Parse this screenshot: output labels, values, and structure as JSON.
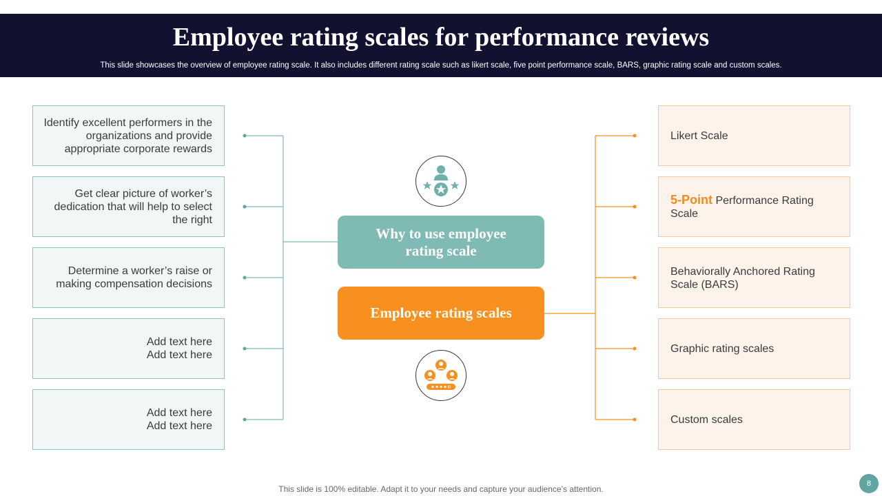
{
  "header": {
    "title": "Employee rating scales for performance reviews",
    "subtitle": "This slide showcases the overview of employee rating scale. It also includes different rating scale such as likert scale, five point performance scale, BARS, graphic rating scale and custom scales."
  },
  "center": {
    "why_label": "Why to use employee rating scale",
    "scales_label": "Employee rating scales",
    "top_icon": "employee-rating-stars-icon",
    "bottom_icon": "team-rating-icon"
  },
  "reasons": [
    {
      "text": "Identify excellent performers in the organizations and provide appropriate corporate rewards"
    },
    {
      "text": "Get clear picture of worker’s dedication that will help to select the right"
    },
    {
      "text": "Determine a worker’s raise or making compensation decisions"
    },
    {
      "text": "Add text here\nAdd text here"
    },
    {
      "text": "Add text here\nAdd text here"
    }
  ],
  "scales": [
    {
      "highlight": "",
      "text": "Likert Scale"
    },
    {
      "highlight": "5-Point",
      "text": " Performance Rating Scale"
    },
    {
      "highlight": "",
      "text": "Behaviorally Anchored Rating Scale (BARS)"
    },
    {
      "highlight": "",
      "text": "Graphic rating scales"
    },
    {
      "highlight": "",
      "text": "Custom scales"
    }
  ],
  "colors": {
    "header_bg": "#12112f",
    "teal": "#7fbab5",
    "orange": "#f7901e"
  },
  "footer": {
    "note": "This slide is 100% editable. Adapt it to your needs and capture your audience’s attention.",
    "page_number": "8"
  }
}
